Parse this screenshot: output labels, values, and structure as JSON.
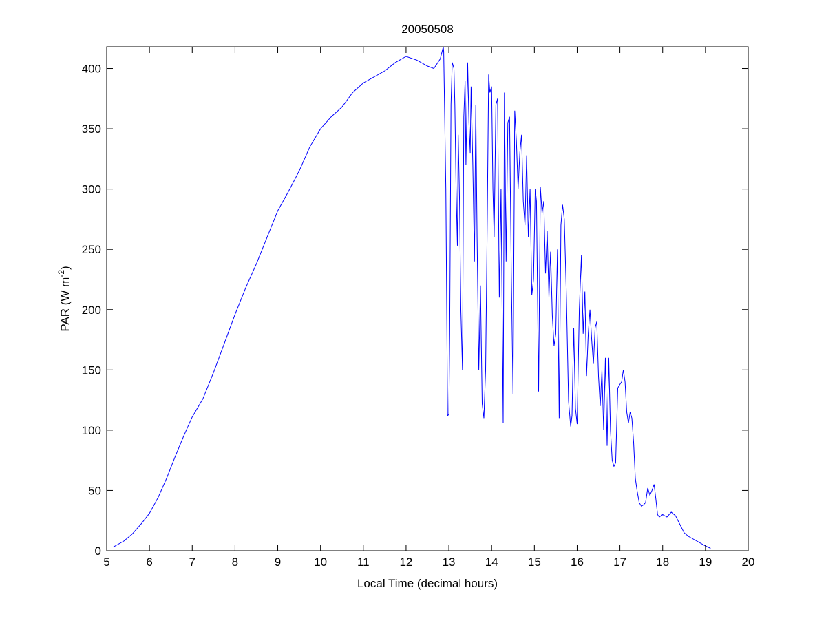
{
  "chart_data": {
    "type": "line",
    "title": "20050508",
    "xlabel": "Local Time (decimal hours)",
    "ylabel_main": "PAR (W m",
    "ylabel_sup": "-2",
    "ylabel_close": ")",
    "xlim": [
      5,
      20
    ],
    "ylim": [
      0,
      418
    ],
    "xticks": [
      5,
      6,
      7,
      8,
      9,
      10,
      11,
      12,
      13,
      14,
      15,
      16,
      17,
      18,
      19,
      20
    ],
    "yticks": [
      0,
      50,
      100,
      150,
      200,
      250,
      300,
      350,
      400
    ],
    "grid": false,
    "series": [
      {
        "name": "PAR",
        "color": "#0000ff",
        "points": [
          [
            5.15,
            3
          ],
          [
            5.4,
            8
          ],
          [
            5.6,
            14
          ],
          [
            5.8,
            22
          ],
          [
            6.0,
            31
          ],
          [
            6.2,
            44
          ],
          [
            6.4,
            60
          ],
          [
            6.6,
            78
          ],
          [
            6.8,
            95
          ],
          [
            7.0,
            111
          ],
          [
            7.25,
            126
          ],
          [
            7.5,
            148
          ],
          [
            7.75,
            172
          ],
          [
            8.0,
            196
          ],
          [
            8.25,
            218
          ],
          [
            8.5,
            238
          ],
          [
            8.75,
            260
          ],
          [
            9.0,
            282
          ],
          [
            9.25,
            298
          ],
          [
            9.5,
            315
          ],
          [
            9.75,
            335
          ],
          [
            10.0,
            350
          ],
          [
            10.25,
            360
          ],
          [
            10.5,
            368
          ],
          [
            10.75,
            380
          ],
          [
            11.0,
            388
          ],
          [
            11.25,
            393
          ],
          [
            11.5,
            398
          ],
          [
            11.75,
            405
          ],
          [
            12.0,
            410
          ],
          [
            12.25,
            407
          ],
          [
            12.5,
            402
          ],
          [
            12.65,
            400
          ],
          [
            12.8,
            408
          ],
          [
            12.87,
            418
          ],
          [
            12.88,
            414
          ],
          [
            12.93,
            300
          ],
          [
            12.97,
            112
          ],
          [
            13.0,
            113
          ],
          [
            13.02,
            180
          ],
          [
            13.05,
            370
          ],
          [
            13.08,
            405
          ],
          [
            13.12,
            400
          ],
          [
            13.14,
            370
          ],
          [
            13.17,
            300
          ],
          [
            13.2,
            253
          ],
          [
            13.22,
            345
          ],
          [
            13.25,
            290
          ],
          [
            13.28,
            200
          ],
          [
            13.32,
            150
          ],
          [
            13.35,
            360
          ],
          [
            13.38,
            390
          ],
          [
            13.4,
            320
          ],
          [
            13.44,
            405
          ],
          [
            13.47,
            355
          ],
          [
            13.5,
            330
          ],
          [
            13.52,
            385
          ],
          [
            13.56,
            320
          ],
          [
            13.6,
            240
          ],
          [
            13.63,
            370
          ],
          [
            13.66,
            260
          ],
          [
            13.7,
            150
          ],
          [
            13.74,
            220
          ],
          [
            13.78,
            122
          ],
          [
            13.82,
            110
          ],
          [
            13.86,
            150
          ],
          [
            13.9,
            280
          ],
          [
            13.93,
            395
          ],
          [
            13.96,
            380
          ],
          [
            14.0,
            385
          ],
          [
            14.03,
            300
          ],
          [
            14.06,
            260
          ],
          [
            14.1,
            370
          ],
          [
            14.14,
            375
          ],
          [
            14.18,
            210
          ],
          [
            14.22,
            300
          ],
          [
            14.27,
            106
          ],
          [
            14.3,
            380
          ],
          [
            14.34,
            240
          ],
          [
            14.38,
            355
          ],
          [
            14.42,
            360
          ],
          [
            14.46,
            230
          ],
          [
            14.5,
            130
          ],
          [
            14.54,
            365
          ],
          [
            14.58,
            340
          ],
          [
            14.62,
            300
          ],
          [
            14.66,
            330
          ],
          [
            14.7,
            345
          ],
          [
            14.74,
            290
          ],
          [
            14.78,
            270
          ],
          [
            14.82,
            328
          ],
          [
            14.86,
            260
          ],
          [
            14.9,
            300
          ],
          [
            14.94,
            212
          ],
          [
            14.98,
            225
          ],
          [
            15.02,
            300
          ],
          [
            15.05,
            290
          ],
          [
            15.1,
            132
          ],
          [
            15.14,
            302
          ],
          [
            15.18,
            280
          ],
          [
            15.22,
            290
          ],
          [
            15.26,
            230
          ],
          [
            15.3,
            265
          ],
          [
            15.34,
            210
          ],
          [
            15.38,
            248
          ],
          [
            15.42,
            195
          ],
          [
            15.46,
            170
          ],
          [
            15.5,
            180
          ],
          [
            15.54,
            250
          ],
          [
            15.58,
            110
          ],
          [
            15.62,
            270
          ],
          [
            15.66,
            287
          ],
          [
            15.7,
            275
          ],
          [
            15.75,
            210
          ],
          [
            15.8,
            124
          ],
          [
            15.85,
            103
          ],
          [
            15.88,
            112
          ],
          [
            15.92,
            185
          ],
          [
            15.96,
            118
          ],
          [
            16.0,
            105
          ],
          [
            16.05,
            200
          ],
          [
            16.1,
            245
          ],
          [
            16.14,
            180
          ],
          [
            16.18,
            215
          ],
          [
            16.22,
            145
          ],
          [
            16.26,
            180
          ],
          [
            16.3,
            200
          ],
          [
            16.34,
            175
          ],
          [
            16.38,
            155
          ],
          [
            16.42,
            185
          ],
          [
            16.46,
            190
          ],
          [
            16.5,
            145
          ],
          [
            16.54,
            120
          ],
          [
            16.58,
            150
          ],
          [
            16.62,
            100
          ],
          [
            16.66,
            160
          ],
          [
            16.7,
            87
          ],
          [
            16.74,
            160
          ],
          [
            16.78,
            100
          ],
          [
            16.82,
            75
          ],
          [
            16.86,
            70
          ],
          [
            16.9,
            73
          ],
          [
            16.95,
            135
          ],
          [
            17.0,
            138
          ],
          [
            17.04,
            140
          ],
          [
            17.08,
            150
          ],
          [
            17.12,
            140
          ],
          [
            17.16,
            115
          ],
          [
            17.2,
            106
          ],
          [
            17.24,
            115
          ],
          [
            17.28,
            110
          ],
          [
            17.32,
            90
          ],
          [
            17.36,
            60
          ],
          [
            17.4,
            50
          ],
          [
            17.45,
            40
          ],
          [
            17.5,
            37
          ],
          [
            17.55,
            38
          ],
          [
            17.6,
            40
          ],
          [
            17.65,
            52
          ],
          [
            17.7,
            46
          ],
          [
            17.75,
            50
          ],
          [
            17.8,
            55
          ],
          [
            17.84,
            43
          ],
          [
            17.88,
            30
          ],
          [
            17.92,
            28
          ],
          [
            18.0,
            30
          ],
          [
            18.1,
            28
          ],
          [
            18.2,
            32
          ],
          [
            18.3,
            29
          ],
          [
            18.4,
            22
          ],
          [
            18.5,
            15
          ],
          [
            18.6,
            12
          ],
          [
            18.8,
            8
          ],
          [
            19.0,
            4
          ],
          [
            19.12,
            2
          ]
        ]
      }
    ]
  }
}
